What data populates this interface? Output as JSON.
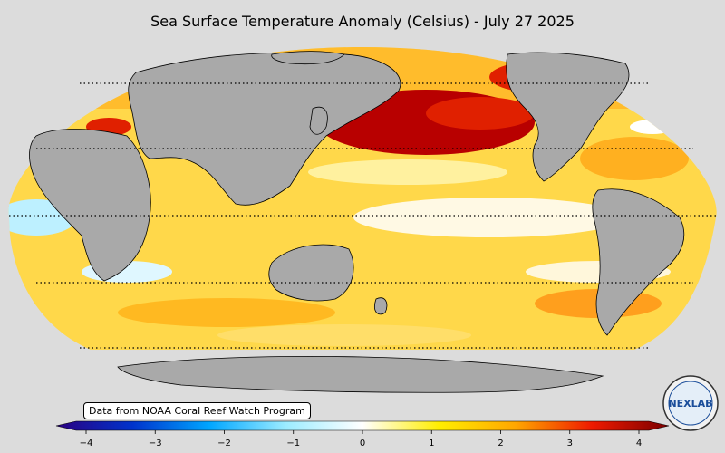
{
  "map": {
    "title": "Sea Surface Temperature Anomaly (Celsius) - July 27 2025",
    "credit": "Data from NOAA Coral Reef Watch Program",
    "projection": "robinson",
    "central_longitude": 180,
    "graticule_latitudes": [
      60,
      30,
      0,
      -30,
      -60
    ],
    "land_color": "#a9a9a9",
    "background_color": "#dcdcdc"
  },
  "colorbar": {
    "min": -4,
    "max": 4,
    "ticks": [
      "−4",
      "−3",
      "−2",
      "−1",
      "0",
      "1",
      "2",
      "3",
      "4"
    ],
    "colors": [
      "#2a0080",
      "#0033cc",
      "#00a6ff",
      "#9cecff",
      "#ffffff",
      "#ffee00",
      "#ffa600",
      "#ee1a00",
      "#7a0000"
    ]
  },
  "logo": {
    "text": "NEXLAB"
  }
}
